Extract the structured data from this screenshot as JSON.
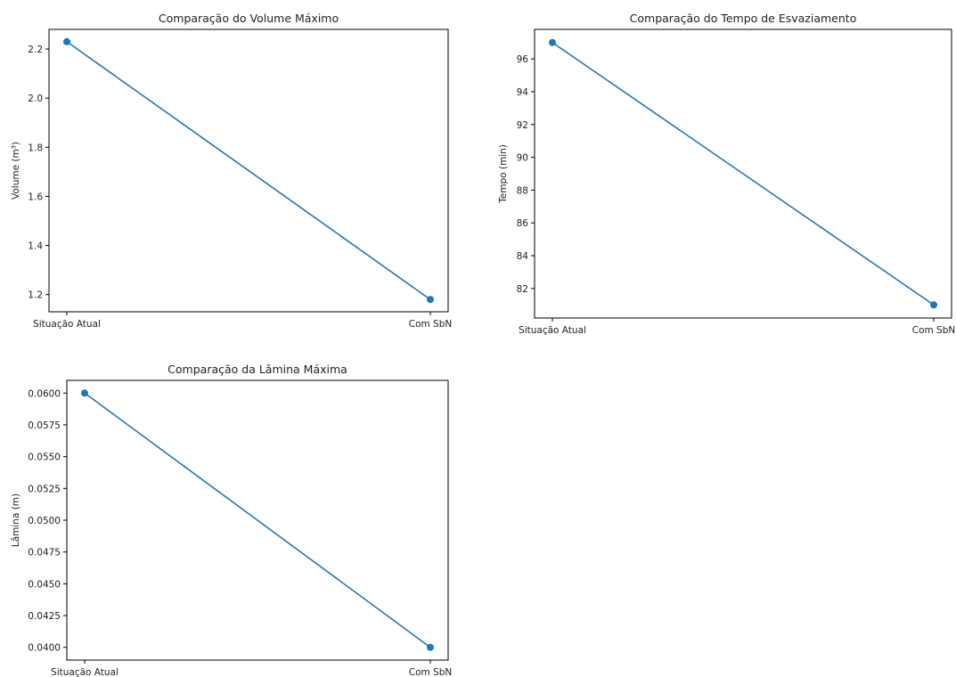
{
  "colors": {
    "series": "#1f77b4",
    "axis": "#000000",
    "text": "#222222"
  },
  "chart_data": [
    {
      "type": "line",
      "title": "Comparação do Volume Máximo",
      "xlabel": "",
      "ylabel": "Volume (m³)",
      "categories": [
        "Situação Atual",
        "Com SbN"
      ],
      "series": [
        {
          "values": [
            2.23,
            1.18
          ]
        }
      ],
      "ylim": [
        1.13,
        2.28
      ],
      "yticks": [
        1.2,
        1.4,
        1.6,
        1.8,
        2.0,
        2.2
      ],
      "ytick_labels": [
        "1.2",
        "1.4",
        "1.6",
        "1.8",
        "2.0",
        "2.2"
      ],
      "grid": false
    },
    {
      "type": "line",
      "title": "Comparação do Tempo de Esvaziamento",
      "xlabel": "",
      "ylabel": "Tempo (min)",
      "categories": [
        "Situação Atual",
        "Com SbN"
      ],
      "series": [
        {
          "values": [
            97,
            81
          ]
        }
      ],
      "ylim": [
        80.2,
        97.8
      ],
      "yticks": [
        82,
        84,
        86,
        88,
        90,
        92,
        94,
        96
      ],
      "ytick_labels": [
        "82",
        "84",
        "86",
        "88",
        "90",
        "92",
        "94",
        "96"
      ],
      "grid": false
    },
    {
      "type": "line",
      "title": "Comparação da Lâmina Máxima",
      "xlabel": "",
      "ylabel": "Lâmina (m)",
      "categories": [
        "Situação Atual",
        "Com SbN"
      ],
      "series": [
        {
          "values": [
            0.06,
            0.04
          ]
        }
      ],
      "ylim": [
        0.039,
        0.061
      ],
      "yticks": [
        0.04,
        0.0425,
        0.045,
        0.0475,
        0.05,
        0.0525,
        0.055,
        0.0575,
        0.06
      ],
      "ytick_labels": [
        "0.0400",
        "0.0425",
        "0.0450",
        "0.0475",
        "0.0500",
        "0.0525",
        "0.0550",
        "0.0575",
        "0.0600"
      ],
      "grid": false
    }
  ]
}
